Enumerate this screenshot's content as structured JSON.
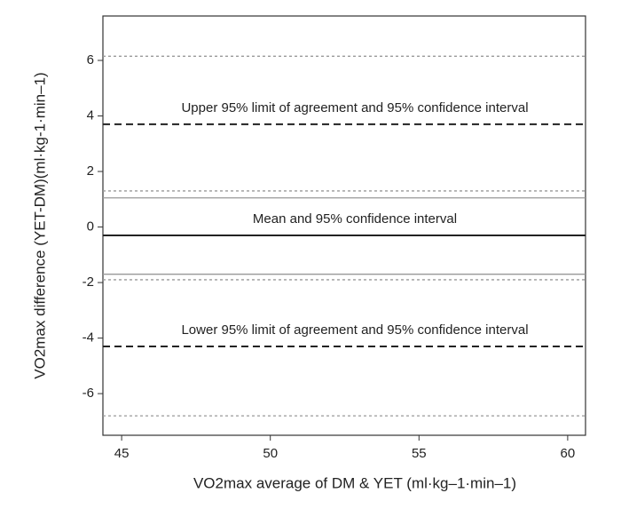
{
  "chart_data": {
    "type": "reference_lines",
    "x_label": "VO2max average of DM & YET (ml·kg–1·min–1)",
    "y_label": "VO2max difference (YET-DM)(ml·kg-1·min–1)",
    "xlim": [
      44.37,
      60.6
    ],
    "xticks": [
      45,
      50,
      55,
      60
    ],
    "ylim": [
      -7.5,
      7.6
    ],
    "yticks": [
      -6,
      -4,
      -2,
      0,
      2,
      4,
      6
    ],
    "lines": [
      {
        "value": 6.15,
        "style": "dotted",
        "color": "#999999"
      },
      {
        "value": 3.7,
        "style": "dashed",
        "color": "#222222",
        "label": "Upper 95% limit of agreement and 95% confidence interval"
      },
      {
        "value": 1.3,
        "style": "dotted",
        "color": "#999999"
      },
      {
        "value": 1.05,
        "style": "solid",
        "color": "#999999"
      },
      {
        "value": -0.3,
        "style": "solid",
        "color": "#222222",
        "label": "Mean and 95% confidence interval"
      },
      {
        "value": -1.7,
        "style": "solid",
        "color": "#999999"
      },
      {
        "value": -1.9,
        "style": "dotted",
        "color": "#999999"
      },
      {
        "value": -4.3,
        "style": "dashed",
        "color": "#222222",
        "label": "Lower 95% limit of agreement and 95% confidence interval"
      },
      {
        "value": -6.8,
        "style": "dotted",
        "color": "#999999"
      }
    ]
  }
}
